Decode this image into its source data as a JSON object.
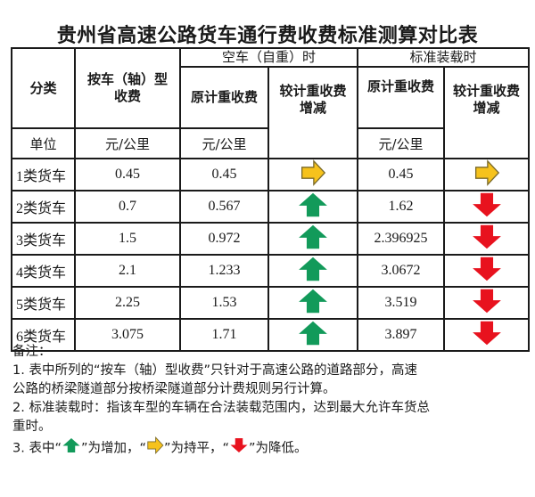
{
  "title": "贵州省高速公路货车通行费收费标准测算对比表",
  "colors": {
    "increase": "#129a5a",
    "flat": "#f6c21c",
    "decrease": "#e8121e",
    "border": "#1a1a1a"
  },
  "table": {
    "headers": {
      "category": "分类",
      "axle_fee": "按车（轴）型收费",
      "axle_fee_line1": "按车（轴）型",
      "axle_fee_line2": "收费",
      "empty_group": "空车（自重）时",
      "standard_group": "标准装载时",
      "orig_weight_fee": "原计重收费",
      "change_vs_weight": "较计重收费增减",
      "change_line1": "较计重收费",
      "change_line2": "增减"
    },
    "unit_row": {
      "label": "单位",
      "axle_unit": "元/公里",
      "empty_unit": "元/公里",
      "standard_unit": "元/公里"
    },
    "rows": [
      {
        "category": "1类货车",
        "axle_fee": "0.45",
        "empty_orig": "0.45",
        "empty_change": "flat",
        "std_orig": "0.45",
        "std_change": "flat"
      },
      {
        "category": "2类货车",
        "axle_fee": "0.7",
        "empty_orig": "0.567",
        "empty_change": "increase",
        "std_orig": "1.62",
        "std_change": "decrease"
      },
      {
        "category": "3类货车",
        "axle_fee": "1.5",
        "empty_orig": "0.972",
        "empty_change": "increase",
        "std_orig": "2.396925",
        "std_change": "decrease"
      },
      {
        "category": "4类货车",
        "axle_fee": "2.1",
        "empty_orig": "1.233",
        "empty_change": "increase",
        "std_orig": "3.0672",
        "std_change": "decrease"
      },
      {
        "category": "5类货车",
        "axle_fee": "2.25",
        "empty_orig": "1.53",
        "empty_change": "increase",
        "std_orig": "3.519",
        "std_change": "decrease"
      },
      {
        "category": "6类货车",
        "axle_fee": "3.075",
        "empty_orig": "1.71",
        "empty_change": "increase",
        "std_orig": "3.897",
        "std_change": "decrease"
      }
    ]
  },
  "notes": {
    "heading": "备注：",
    "note1_line1": "1. 表中所列的“按车（轴）型收费”只针对于高速公路的道路部分，高速",
    "note1_line2": "公路的桥梁隧道部分按桥梁隧道部分计费规则另行计算。",
    "note2_line1": "2. 标准装载时：指该车型的车辆在合法装载范围内，达到最大允许车货总",
    "note2_line2": "重时。",
    "note3_prefix": "3. 表中“",
    "note3_increase": "”为增加，“",
    "note3_flat": "”为持平，“",
    "note3_decrease": "”为降低。"
  }
}
